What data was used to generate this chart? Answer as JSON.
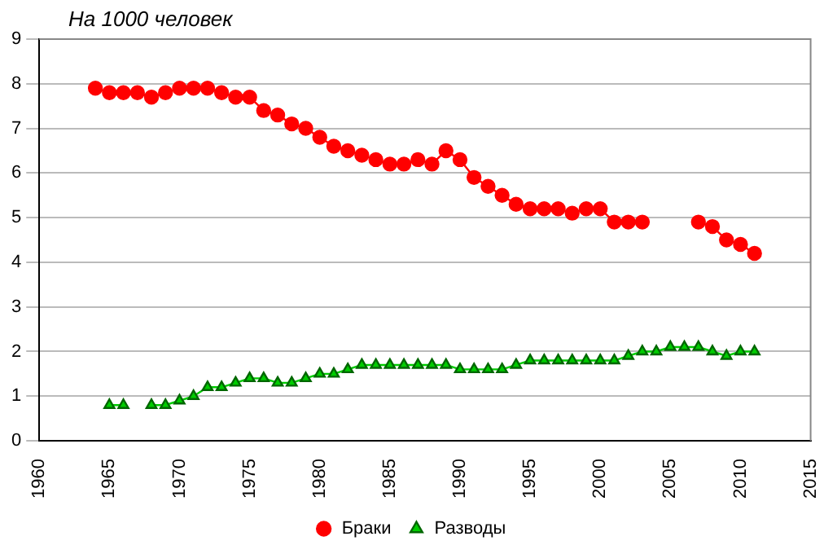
{
  "chart_data": {
    "type": "line",
    "title": "На 1000 человек",
    "x": [
      1964,
      1965,
      1966,
      1967,
      1968,
      1969,
      1970,
      1971,
      1972,
      1973,
      1974,
      1975,
      1976,
      1977,
      1978,
      1979,
      1980,
      1981,
      1982,
      1983,
      1984,
      1985,
      1986,
      1987,
      1988,
      1989,
      1990,
      1991,
      1992,
      1993,
      1994,
      1995,
      1996,
      1997,
      1998,
      1999,
      2000,
      2001,
      2002,
      2003,
      2004,
      2005,
      2006,
      2007,
      2008,
      2009,
      2010,
      2011
    ],
    "series": [
      {
        "name": "Браки",
        "color": "#ff0000",
        "marker": "circle",
        "values": [
          7.9,
          7.8,
          7.8,
          7.8,
          7.7,
          7.8,
          7.9,
          7.9,
          7.9,
          7.8,
          7.7,
          7.7,
          7.4,
          7.3,
          7.1,
          7.0,
          6.8,
          6.6,
          6.5,
          6.4,
          6.3,
          6.2,
          6.2,
          6.3,
          6.2,
          6.5,
          6.3,
          5.9,
          5.7,
          5.5,
          5.3,
          5.2,
          5.2,
          5.2,
          5.1,
          5.2,
          5.2,
          4.9,
          4.9,
          4.9,
          null,
          null,
          null,
          4.9,
          4.8,
          4.5,
          4.4,
          4.2
        ]
      },
      {
        "name": "Разводы",
        "color": "#00cc00",
        "marker": "triangle",
        "values": [
          null,
          0.8,
          0.8,
          null,
          0.8,
          0.8,
          0.9,
          1.0,
          1.2,
          1.2,
          1.3,
          1.4,
          1.4,
          1.3,
          1.3,
          1.4,
          1.5,
          1.5,
          1.6,
          1.7,
          1.7,
          1.7,
          1.7,
          1.7,
          1.7,
          1.7,
          1.6,
          1.6,
          1.6,
          1.6,
          1.7,
          1.8,
          1.8,
          1.8,
          1.8,
          1.8,
          1.8,
          1.8,
          1.9,
          2.0,
          2.0,
          2.1,
          2.1,
          2.1,
          2.0,
          1.9,
          2.0,
          2.0
        ]
      }
    ],
    "xlim": [
      1960,
      2015
    ],
    "xticks": [
      1960,
      1965,
      1970,
      1975,
      1980,
      1985,
      1990,
      1995,
      2000,
      2005,
      2010,
      2015
    ],
    "ylim": [
      0,
      9
    ],
    "yticks": [
      0,
      1,
      2,
      3,
      4,
      5,
      6,
      7,
      8,
      9
    ],
    "grid": "y",
    "legend": "bottom"
  }
}
